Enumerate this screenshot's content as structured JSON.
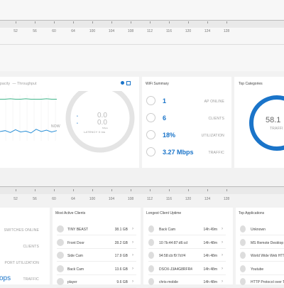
{
  "channel_ruler_top": [
    "52",
    "56",
    "60",
    "64",
    "100",
    "104",
    "108",
    "112",
    "116",
    "120",
    "124",
    "128"
  ],
  "channel_ruler_bottom": [
    "52",
    "56",
    "60",
    "64",
    "100",
    "104",
    "108",
    "112",
    "116",
    "120",
    "124",
    "128"
  ],
  "throughput_chart": {
    "legend": [
      "pacity",
      "Throughput"
    ],
    "now_label": "NOW",
    "capacity": [
      90,
      90,
      91,
      90,
      90,
      91,
      90,
      90,
      90,
      91,
      90,
      90
    ],
    "throughput": [
      20,
      22,
      18,
      24,
      19,
      21,
      17,
      25,
      20,
      23,
      19,
      22
    ]
  },
  "gauge": {
    "download": "0.0",
    "upload": "0.0",
    "unit": "Mbps",
    "latency_label": "LATENCY",
    "latency": "0 ms"
  },
  "wifi_summary": {
    "title": "WiFi Summary",
    "rows": [
      {
        "value": "1",
        "label": "AP ONLINE"
      },
      {
        "value": "6",
        "label": "CLIENTS"
      },
      {
        "value": "18%",
        "label": "UTILIZATION"
      },
      {
        "value": "3.27 Mbps",
        "label": "TRAFFIC"
      }
    ]
  },
  "top_categories": {
    "title": "Top Categories",
    "value": "58.1",
    "label": "TRAFFI"
  },
  "switch_summary": {
    "labels": [
      "SWITCHES ONLINE",
      "CLIENTS",
      "PORT UTILIZATION",
      "TRAFFIC"
    ],
    "traffic": "ops"
  },
  "most_active_clients": {
    "title": "Most Active Clients",
    "rows": [
      {
        "name": "TINY BEAST",
        "value": "38.1 GB"
      },
      {
        "name": "Front Door",
        "value": "28.2 GB"
      },
      {
        "name": "Side Cam",
        "value": "17.9 GB"
      },
      {
        "name": "Back Cam",
        "value": "13.6 GB"
      },
      {
        "name": "player",
        "value": "9.6 GB"
      }
    ]
  },
  "longest_uptime": {
    "title": "Longest Client Uptime",
    "rows": [
      {
        "name": "Back Cam",
        "value": "14h 49m"
      },
      {
        "name": "10:7b:44:87:d6:cd",
        "value": "14h 48m"
      },
      {
        "name": "94:58:cb:f9:7d:f4",
        "value": "14h 48m"
      },
      {
        "name": "DSOX-J3A4G8RFR4",
        "value": "14h 48m"
      },
      {
        "name": "chris-mobile",
        "value": "14h 48m"
      }
    ]
  },
  "top_applications": {
    "title": "Top Applications",
    "rows": [
      "Unknown",
      "MS Remote Desktop Pro",
      "World Wide Web HTTP",
      "Youtube",
      "HTTP Protocol over TLS"
    ]
  }
}
